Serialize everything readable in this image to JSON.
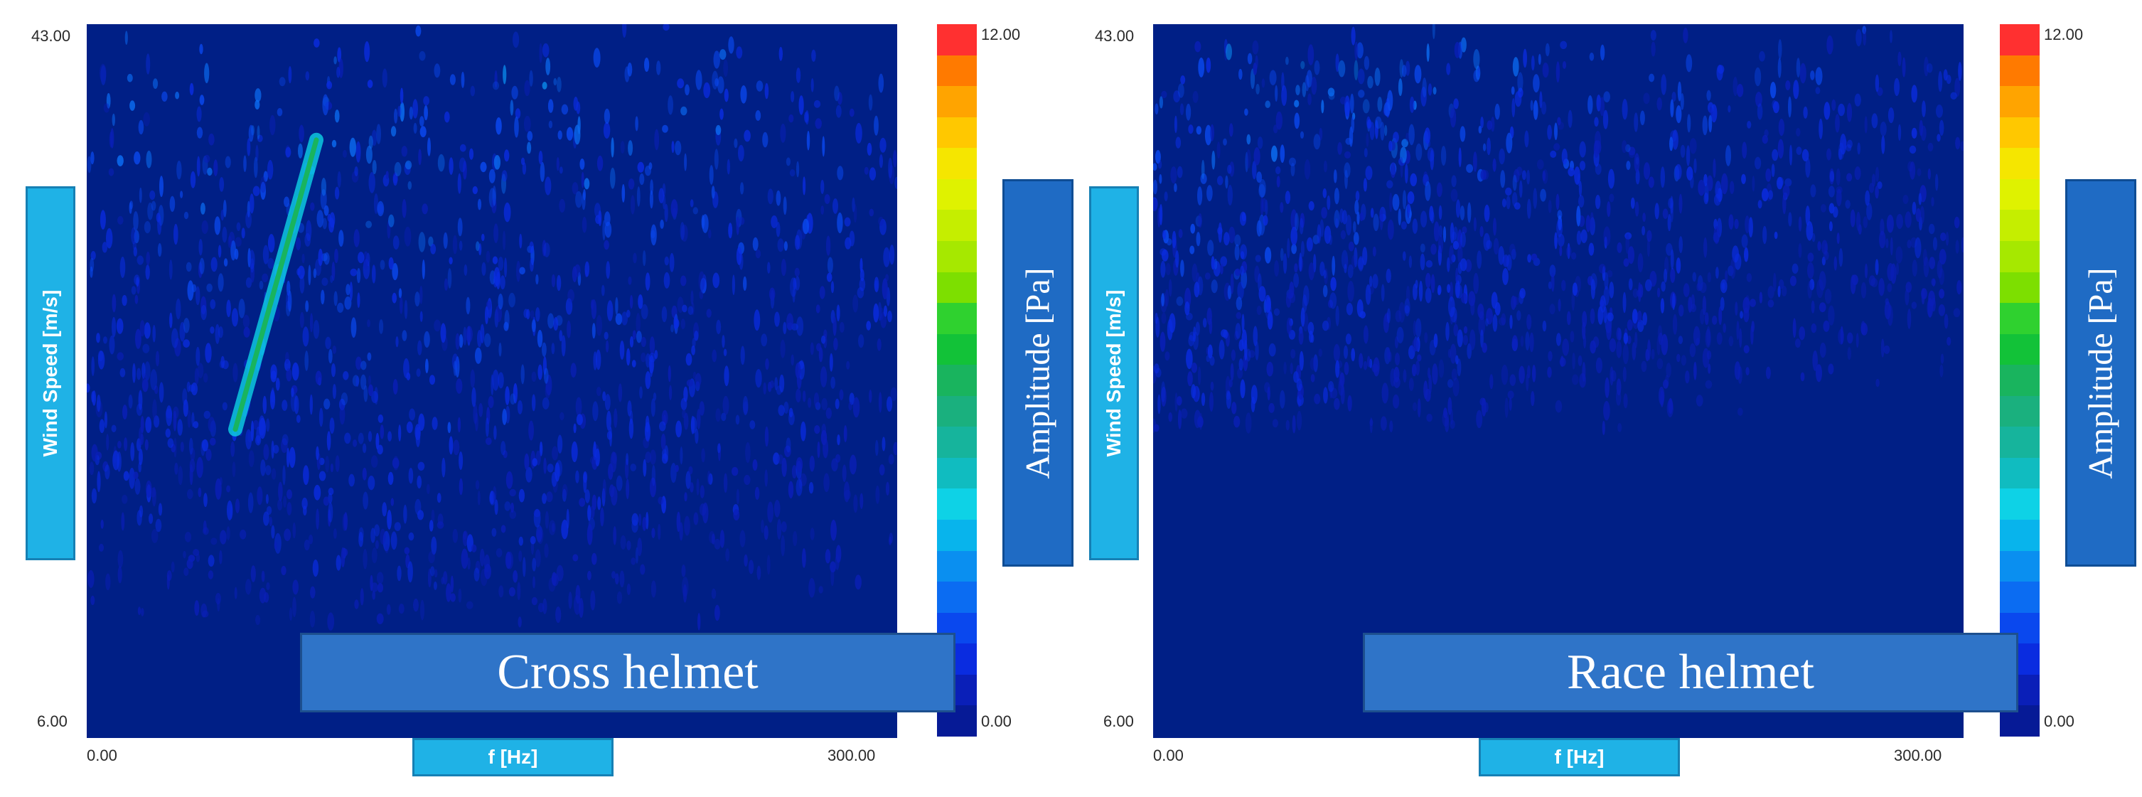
{
  "chart_data": [
    {
      "type": "heatmap",
      "title": "Cross helmet",
      "xlabel": "f [Hz]",
      "ylabel": "Wind Speed [m/s]",
      "xlim": [
        0,
        300
      ],
      "ylim": [
        6,
        43
      ],
      "x_tick_labels": [
        "0.00",
        "300.00"
      ],
      "y_tick_labels": [
        "43.00",
        "6.00"
      ],
      "colorbar": {
        "label": "Amplitude [Pa]",
        "min_label": "0.00",
        "max_label": "12.00",
        "range": [
          0,
          12
        ]
      },
      "grid": false,
      "features": [
        {
          "name": "tonal line",
          "x": [
            55,
            85
          ],
          "y": [
            22,
            37
          ],
          "amplitude": 6
        }
      ],
      "background": {
        "x_range": [
          0,
          300
        ],
        "y_range": [
          12,
          43
        ],
        "amplitude_range": [
          0,
          3
        ],
        "peak_x": 120
      }
    },
    {
      "type": "heatmap",
      "title": "Race helmet",
      "xlabel": "f [Hz]",
      "ylabel": "Wind Speed [m/s]",
      "xlim": [
        0,
        300
      ],
      "ylim": [
        6,
        43
      ],
      "x_tick_labels": [
        "0.00",
        "300.00"
      ],
      "y_tick_labels": [
        "43.00",
        "6.00"
      ],
      "colorbar": {
        "label": "Amplitude [Pa]",
        "min_label": "0.00",
        "max_label": "12.00",
        "range": [
          0,
          12
        ]
      },
      "grid": false,
      "features": [],
      "background": {
        "x_range": [
          0,
          300
        ],
        "y_range": [
          22,
          43
        ],
        "amplitude_range": [
          0,
          3
        ],
        "peak_x": 30
      }
    }
  ],
  "colors": {
    "plot_background": "#001f86",
    "label_box": "#1fb2e6",
    "title_box": "#2f74c8",
    "colorbar_label_box": "#1f6bc4",
    "colorbar_scale": [
      "#ff3030",
      "#ff7a00",
      "#ffa400",
      "#ffc800",
      "#f5e600",
      "#dff200",
      "#c5ee00",
      "#a6e800",
      "#7ddf00",
      "#2fd12f",
      "#12c238",
      "#19b45e",
      "#1ab07e",
      "#16b49c",
      "#10bcc0",
      "#0ed2e6",
      "#08b4ec",
      "#0a8ff0",
      "#0b6cf2",
      "#0a48ee",
      "#0a2ce0",
      "#0a1fb8",
      "#061a96"
    ]
  }
}
